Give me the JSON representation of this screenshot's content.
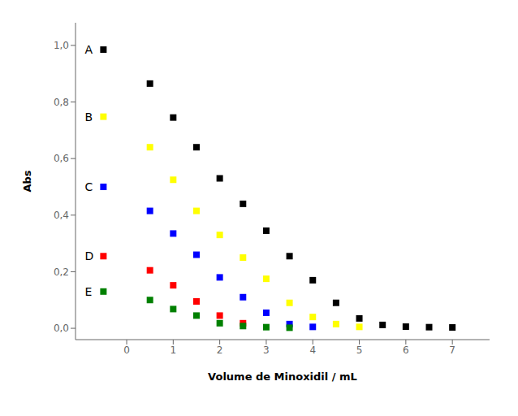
{
  "chart_data": {
    "type": "scatter",
    "x_label": "Volume de Minoxidil / mL",
    "y_label": "Abs",
    "xlim": [
      -1.1,
      7.8
    ],
    "ylim": [
      -0.04,
      1.08
    ],
    "xticks": [
      0,
      1,
      2,
      3,
      4,
      5,
      6,
      7
    ],
    "yticks": [
      {
        "value": 0.0,
        "label": "0,0"
      },
      {
        "value": 0.2,
        "label": "0,2"
      },
      {
        "value": 0.4,
        "label": "0,4"
      },
      {
        "value": 0.6,
        "label": "0,6"
      },
      {
        "value": 0.8,
        "label": "0,8"
      },
      {
        "value": 1.0,
        "label": "1,0"
      }
    ],
    "grid": false,
    "marker": "square",
    "series": [
      {
        "name": "A",
        "color": "#000000",
        "x": [
          -0.5,
          0.5,
          1.0,
          1.5,
          2.0,
          2.5,
          3.0,
          3.5,
          4.0,
          4.5,
          5.0,
          5.5,
          6.0,
          6.5,
          7.0
        ],
        "values": [
          0.985,
          0.865,
          0.745,
          0.64,
          0.53,
          0.44,
          0.345,
          0.255,
          0.17,
          0.09,
          0.035,
          0.012,
          0.006,
          0.004,
          0.003
        ]
      },
      {
        "name": "B",
        "color": "#FFFF00",
        "x": [
          -0.5,
          0.5,
          1.0,
          1.5,
          2.0,
          2.5,
          3.0,
          3.5,
          4.0,
          4.5,
          5.0
        ],
        "values": [
          0.748,
          0.64,
          0.525,
          0.415,
          0.33,
          0.25,
          0.175,
          0.09,
          0.04,
          0.015,
          0.005
        ]
      },
      {
        "name": "C",
        "color": "#0000FF",
        "x": [
          -0.5,
          0.5,
          1.0,
          1.5,
          2.0,
          2.5,
          3.0,
          3.5,
          4.0
        ],
        "values": [
          0.5,
          0.415,
          0.335,
          0.26,
          0.18,
          0.11,
          0.055,
          0.015,
          0.005
        ]
      },
      {
        "name": "D",
        "color": "#FF0000",
        "x": [
          -0.5,
          0.5,
          1.0,
          1.5,
          2.0,
          2.5
        ],
        "values": [
          0.255,
          0.205,
          0.152,
          0.095,
          0.045,
          0.018
        ]
      },
      {
        "name": "E",
        "color": "#008000",
        "x": [
          -0.5,
          0.5,
          1.0,
          1.5,
          2.0,
          2.5,
          3.0,
          3.5
        ],
        "values": [
          0.13,
          0.1,
          0.068,
          0.045,
          0.018,
          0.008,
          0.004,
          0.002
        ]
      }
    ],
    "annotations": [
      {
        "text": "A",
        "x": -0.9,
        "y": 0.985
      },
      {
        "text": "B",
        "x": -0.9,
        "y": 0.748
      },
      {
        "text": "C",
        "x": -0.9,
        "y": 0.5
      },
      {
        "text": "D",
        "x": -0.9,
        "y": 0.255
      },
      {
        "text": "E",
        "x": -0.9,
        "y": 0.13
      }
    ]
  }
}
